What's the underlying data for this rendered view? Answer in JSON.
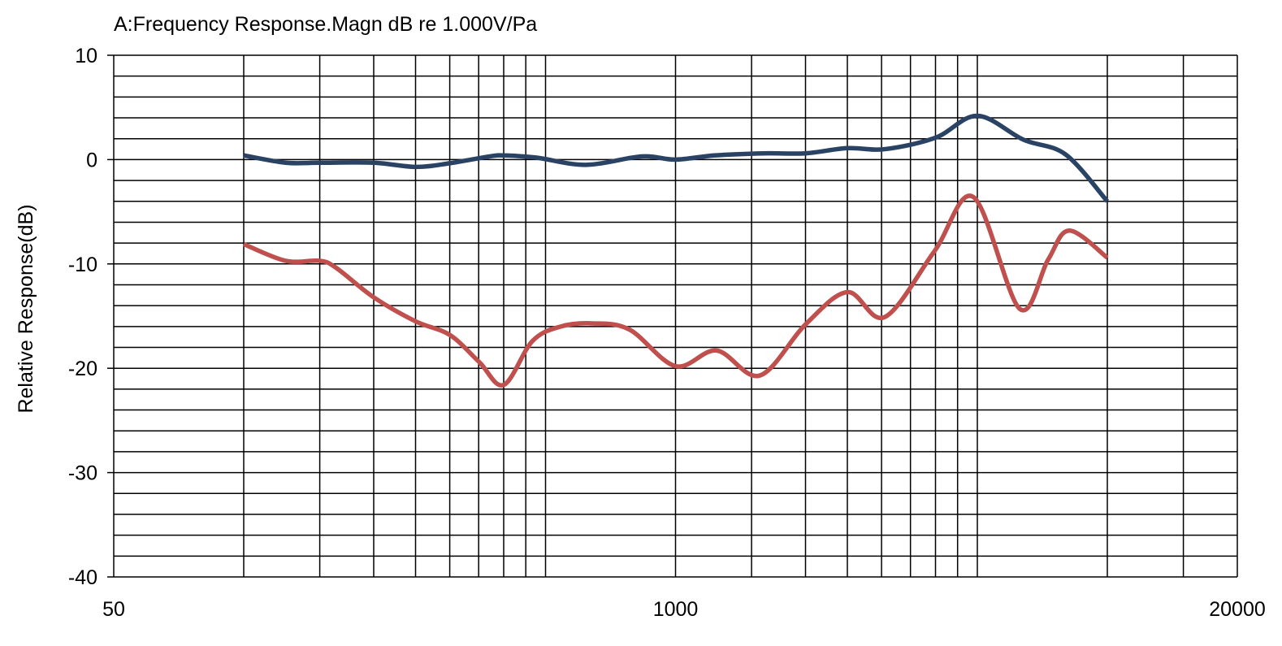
{
  "chart_data": {
    "type": "line",
    "title": "A:Frequency Response.Magn dB re 1.000V/Pa",
    "xlabel": "",
    "ylabel": "Relative Response(dB)",
    "xscale": "log",
    "xlim": [
      50,
      20000
    ],
    "ylim": [
      -40,
      10
    ],
    "x_tick_labels": [
      "50",
      "1000",
      "20000"
    ],
    "x_ticks": [
      50,
      1000,
      20000
    ],
    "y_ticks": [
      10,
      0,
      -10,
      -20,
      -30,
      -40
    ],
    "y_tick_labels": [
      "10",
      "0",
      "-10",
      "-20",
      "-30",
      "-40"
    ],
    "grid": true,
    "y_grid_step": 2,
    "x_gridlines": [
      100,
      150,
      200,
      250,
      300,
      350,
      400,
      450,
      500,
      1000,
      1500,
      2000,
      2500,
      3000,
      3500,
      4000,
      4500,
      5000,
      10000,
      15000
    ],
    "legend": "none",
    "series": [
      {
        "color": "#2a4365",
        "points": [
          [
            100,
            0.4
          ],
          [
            125,
            -0.3
          ],
          [
            150,
            -0.3
          ],
          [
            200,
            -0.3
          ],
          [
            250,
            -0.7
          ],
          [
            300,
            -0.35
          ],
          [
            370,
            0.3
          ],
          [
            400,
            0.4
          ],
          [
            475,
            0.2
          ],
          [
            620,
            -0.5
          ],
          [
            835,
            0.3
          ],
          [
            1000,
            0.0
          ],
          [
            1230,
            0.4
          ],
          [
            1600,
            0.6
          ],
          [
            2000,
            0.6
          ],
          [
            2500,
            1.1
          ],
          [
            3050,
            1.0
          ],
          [
            4000,
            2.1
          ],
          [
            5000,
            4.2
          ],
          [
            6400,
            1.9
          ],
          [
            8000,
            0.5
          ],
          [
            10000,
            -4.0
          ]
        ]
      },
      {
        "color": "#c0504d",
        "points": [
          [
            100,
            -8.1
          ],
          [
            125,
            -9.7
          ],
          [
            150,
            -9.7
          ],
          [
            164,
            -10.4
          ],
          [
            200,
            -13.2
          ],
          [
            250,
            -15.5
          ],
          [
            300,
            -16.8
          ],
          [
            351,
            -19.4
          ],
          [
            400,
            -21.6
          ],
          [
            466,
            -17.4
          ],
          [
            542,
            -16.0
          ],
          [
            644,
            -15.7
          ],
          [
            783,
            -16.3
          ],
          [
            1000,
            -19.8
          ],
          [
            1245,
            -18.3
          ],
          [
            1566,
            -20.7
          ],
          [
            2000,
            -15.8
          ],
          [
            2500,
            -12.7
          ],
          [
            3050,
            -15.1
          ],
          [
            3975,
            -8.8
          ],
          [
            4900,
            -3.6
          ],
          [
            6265,
            -14.3
          ],
          [
            7290,
            -9.6
          ],
          [
            8160,
            -6.8
          ],
          [
            10000,
            -9.4
          ]
        ]
      }
    ]
  }
}
